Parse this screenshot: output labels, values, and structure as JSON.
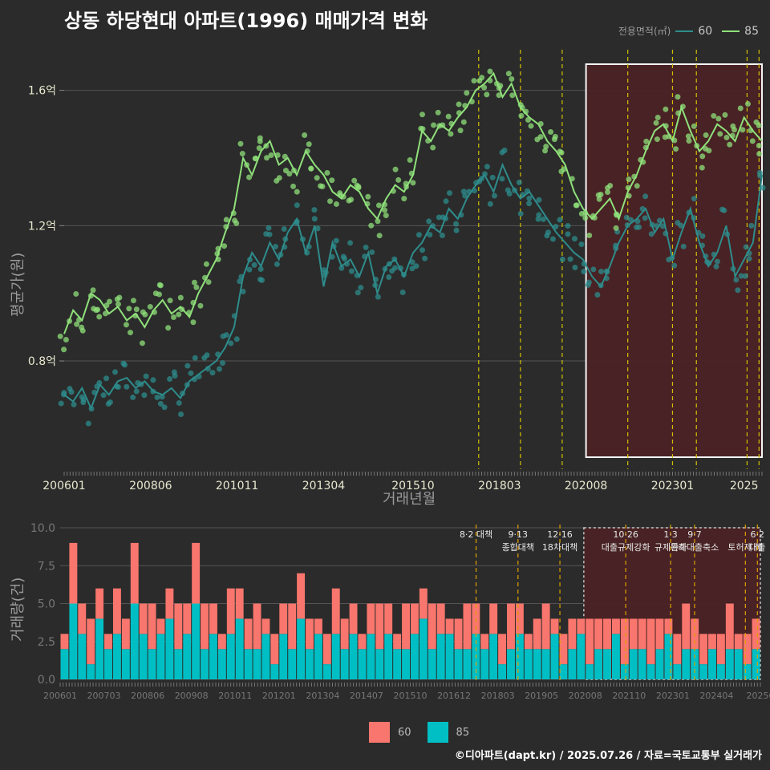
{
  "title": "상동 하당현대 아파트(1996) 매매가격 변화",
  "source": "©디아파트(dapt.kr) / 2025.07.26 / 자료=국토교통부 실거래가",
  "colors": {
    "background": "#2b2b2b",
    "s60_line": "#2e8c8c",
    "s85_line": "#8fe07a",
    "bar60": "#f8766d",
    "bar85": "#00bfc4",
    "vline": "#d4c000",
    "vline2": "#e0a000",
    "highlight_fill": "#4a2224",
    "highlight_border": "#ffffff",
    "grid": "#555555"
  },
  "legend_top": {
    "title": "전용면적(㎡)",
    "items": [
      {
        "label": "60",
        "color": "#2e8c8c"
      },
      {
        "label": "85",
        "color": "#8fe07a"
      }
    ]
  },
  "legend_bottom": {
    "items": [
      {
        "label": "60",
        "color": "#f8766d"
      },
      {
        "label": "85",
        "color": "#00bfc4"
      }
    ]
  },
  "chart_data": [
    {
      "type": "line",
      "title": "상동 하당현대 아파트(1996) 매매가격 변화",
      "xlabel": "거래년월",
      "ylabel": "평균가(원)",
      "x_tick_labels": [
        "200601",
        "200806",
        "201011",
        "201304",
        "201510",
        "201803",
        "202008",
        "202301",
        "2025"
      ],
      "x_tick_values": [
        2006.0,
        2008.417,
        2010.833,
        2013.25,
        2015.75,
        2018.167,
        2020.583,
        2023.0,
        2025.0
      ],
      "xlim": [
        2006.0,
        2025.5
      ],
      "y_tick_labels": [
        "0.8억",
        "1.2억",
        "1.6억"
      ],
      "y_tick_values": [
        0.8,
        1.2,
        1.6
      ],
      "ylim": [
        0.48,
        1.72
      ],
      "y_unit": "억",
      "grid": true,
      "legend_position": "top-right",
      "series": [
        {
          "name": "60",
          "points": [
            [
              2006.0,
              0.7
            ],
            [
              2006.25,
              0.68
            ],
            [
              2006.5,
              0.72
            ],
            [
              2006.75,
              0.66
            ],
            [
              2007.0,
              0.73
            ],
            [
              2007.25,
              0.7
            ],
            [
              2007.5,
              0.74
            ],
            [
              2007.75,
              0.75
            ],
            [
              2008.0,
              0.72
            ],
            [
              2008.25,
              0.74
            ],
            [
              2008.5,
              0.71
            ],
            [
              2008.75,
              0.7
            ],
            [
              2009.0,
              0.72
            ],
            [
              2009.25,
              0.69
            ],
            [
              2009.5,
              0.74
            ],
            [
              2009.75,
              0.76
            ],
            [
              2010.0,
              0.78
            ],
            [
              2010.25,
              0.8
            ],
            [
              2010.5,
              0.84
            ],
            [
              2010.75,
              0.9
            ],
            [
              2011.0,
              1.05
            ],
            [
              2011.25,
              1.12
            ],
            [
              2011.5,
              1.08
            ],
            [
              2011.75,
              1.15
            ],
            [
              2012.0,
              1.1
            ],
            [
              2012.25,
              1.18
            ],
            [
              2012.5,
              1.22
            ],
            [
              2012.75,
              1.12
            ],
            [
              2013.0,
              1.2
            ],
            [
              2013.25,
              1.02
            ],
            [
              2013.5,
              1.15
            ],
            [
              2013.75,
              1.08
            ],
            [
              2014.0,
              1.1
            ],
            [
              2014.25,
              1.05
            ],
            [
              2014.5,
              1.12
            ],
            [
              2014.75,
              1.0
            ],
            [
              2015.0,
              1.08
            ],
            [
              2015.25,
              1.1
            ],
            [
              2015.5,
              1.05
            ],
            [
              2015.75,
              1.12
            ],
            [
              2016.0,
              1.15
            ],
            [
              2016.25,
              1.2
            ],
            [
              2016.5,
              1.18
            ],
            [
              2016.75,
              1.25
            ],
            [
              2017.0,
              1.22
            ],
            [
              2017.25,
              1.28
            ],
            [
              2017.5,
              1.32
            ],
            [
              2017.75,
              1.35
            ],
            [
              2018.0,
              1.3
            ],
            [
              2018.25,
              1.38
            ],
            [
              2018.5,
              1.32
            ],
            [
              2018.75,
              1.28
            ],
            [
              2019.0,
              1.3
            ],
            [
              2019.25,
              1.26
            ],
            [
              2019.5,
              1.22
            ],
            [
              2019.75,
              1.18
            ],
            [
              2020.0,
              1.15
            ],
            [
              2020.25,
              1.12
            ],
            [
              2020.5,
              1.1
            ],
            [
              2020.75,
              1.05
            ],
            [
              2021.0,
              1.02
            ],
            [
              2021.25,
              1.08
            ],
            [
              2021.5,
              1.15
            ],
            [
              2021.75,
              1.2
            ],
            [
              2022.0,
              1.22
            ],
            [
              2022.25,
              1.25
            ],
            [
              2022.5,
              1.18
            ],
            [
              2022.75,
              1.22
            ],
            [
              2023.0,
              1.1
            ],
            [
              2023.25,
              1.18
            ],
            [
              2023.5,
              1.25
            ],
            [
              2023.75,
              1.15
            ],
            [
              2024.0,
              1.08
            ],
            [
              2024.25,
              1.12
            ],
            [
              2024.5,
              1.2
            ],
            [
              2024.75,
              1.05
            ],
            [
              2025.0,
              1.1
            ],
            [
              2025.25,
              1.15
            ],
            [
              2025.5,
              1.35
            ]
          ]
        },
        {
          "name": "85",
          "points": [
            [
              2006.0,
              0.88
            ],
            [
              2006.25,
              0.95
            ],
            [
              2006.5,
              0.92
            ],
            [
              2006.75,
              1.0
            ],
            [
              2007.0,
              0.98
            ],
            [
              2007.25,
              0.94
            ],
            [
              2007.5,
              0.96
            ],
            [
              2007.75,
              0.92
            ],
            [
              2008.0,
              0.94
            ],
            [
              2008.25,
              0.9
            ],
            [
              2008.5,
              0.95
            ],
            [
              2008.75,
              0.98
            ],
            [
              2009.0,
              0.94
            ],
            [
              2009.25,
              0.96
            ],
            [
              2009.5,
              0.93
            ],
            [
              2009.75,
              1.0
            ],
            [
              2010.0,
              1.05
            ],
            [
              2010.25,
              1.1
            ],
            [
              2010.5,
              1.18
            ],
            [
              2010.75,
              1.25
            ],
            [
              2011.0,
              1.4
            ],
            [
              2011.25,
              1.35
            ],
            [
              2011.5,
              1.42
            ],
            [
              2011.75,
              1.45
            ],
            [
              2012.0,
              1.38
            ],
            [
              2012.25,
              1.4
            ],
            [
              2012.5,
              1.35
            ],
            [
              2012.75,
              1.42
            ],
            [
              2013.0,
              1.38
            ],
            [
              2013.25,
              1.35
            ],
            [
              2013.5,
              1.3
            ],
            [
              2013.75,
              1.28
            ],
            [
              2014.0,
              1.32
            ],
            [
              2014.25,
              1.3
            ],
            [
              2014.5,
              1.25
            ],
            [
              2014.75,
              1.22
            ],
            [
              2015.0,
              1.28
            ],
            [
              2015.25,
              1.32
            ],
            [
              2015.5,
              1.3
            ],
            [
              2015.75,
              1.35
            ],
            [
              2016.0,
              1.48
            ],
            [
              2016.25,
              1.45
            ],
            [
              2016.5,
              1.5
            ],
            [
              2016.75,
              1.48
            ],
            [
              2017.0,
              1.52
            ],
            [
              2017.25,
              1.55
            ],
            [
              2017.5,
              1.6
            ],
            [
              2017.75,
              1.62
            ],
            [
              2018.0,
              1.65
            ],
            [
              2018.25,
              1.58
            ],
            [
              2018.5,
              1.62
            ],
            [
              2018.75,
              1.55
            ],
            [
              2019.0,
              1.52
            ],
            [
              2019.25,
              1.5
            ],
            [
              2019.5,
              1.45
            ],
            [
              2019.75,
              1.42
            ],
            [
              2020.0,
              1.38
            ],
            [
              2020.25,
              1.3
            ],
            [
              2020.5,
              1.25
            ],
            [
              2020.75,
              1.22
            ],
            [
              2021.0,
              1.25
            ],
            [
              2021.25,
              1.28
            ],
            [
              2021.5,
              1.22
            ],
            [
              2021.75,
              1.3
            ],
            [
              2022.0,
              1.35
            ],
            [
              2022.25,
              1.42
            ],
            [
              2022.5,
              1.48
            ],
            [
              2022.75,
              1.5
            ],
            [
              2023.0,
              1.45
            ],
            [
              2023.25,
              1.55
            ],
            [
              2023.5,
              1.48
            ],
            [
              2023.75,
              1.42
            ],
            [
              2024.0,
              1.45
            ],
            [
              2024.25,
              1.5
            ],
            [
              2024.5,
              1.48
            ],
            [
              2024.75,
              1.45
            ],
            [
              2025.0,
              1.52
            ],
            [
              2025.25,
              1.48
            ],
            [
              2025.5,
              1.45
            ]
          ]
        }
      ],
      "policy_lines": [
        2017.583,
        2018.75,
        2019.917,
        2021.75,
        2023.0,
        2023.667,
        2025.083,
        2025.417
      ],
      "highlight_range": [
        2020.583,
        2025.5
      ]
    },
    {
      "type": "bar",
      "stacked": true,
      "ylabel": "거래량(건)",
      "x_tick_labels": [
        "200601",
        "200703",
        "200806",
        "200908",
        "201011",
        "201201",
        "201304",
        "201407",
        "201510",
        "201612",
        "201803",
        "201905",
        "202008",
        "202110",
        "202301",
        "202404",
        "20250"
      ],
      "ylim": [
        0,
        10
      ],
      "y_tick_labels": [
        "0.0",
        "2.5",
        "5.0",
        "7.5",
        "10.0"
      ],
      "y_tick_values": [
        0,
        2.5,
        5.0,
        7.5,
        10.0
      ],
      "annotations": [
        {
          "x": 2017.583,
          "lines": [
            "8·2 대책"
          ]
        },
        {
          "x": 2018.75,
          "lines": [
            "9·13",
            "종합대책"
          ]
        },
        {
          "x": 2019.917,
          "lines": [
            "12·16",
            "18차대책"
          ]
        },
        {
          "x": 2021.75,
          "lines": [
            "10·26",
            "대출규제강화"
          ]
        },
        {
          "x": 2023.0,
          "lines": [
            "1·3",
            "규제완화"
          ]
        },
        {
          "x": 2023.667,
          "lines": [
            "9·7",
            "특례대출축소"
          ]
        },
        {
          "x": 2025.083,
          "lines": [
            "",
            "토허제 해"
          ]
        },
        {
          "x": 2025.417,
          "lines": [
            "6·2",
            "대출"
          ]
        }
      ],
      "series": [
        {
          "name": "60",
          "values": [
            1,
            4,
            2,
            3,
            2,
            1,
            3,
            2,
            4,
            2,
            3,
            1,
            2,
            3,
            2,
            4,
            3,
            2,
            1,
            3,
            2,
            2,
            3,
            1,
            2,
            2,
            3,
            3,
            2,
            1,
            2,
            3,
            2,
            2,
            1,
            2,
            3,
            2,
            1,
            3,
            2,
            2,
            3,
            2,
            1,
            2,
            3,
            2,
            1,
            2,
            2,
            3,
            2,
            1,
            2,
            3,
            1,
            2,
            2,
            1,
            3,
            2,
            2,
            1,
            3,
            2,
            2,
            3,
            2,
            1,
            2,
            3,
            2,
            2,
            1,
            2,
            3,
            1,
            2,
            2
          ]
        },
        {
          "name": "85",
          "values": [
            2,
            5,
            3,
            1,
            4,
            2,
            3,
            2,
            5,
            3,
            2,
            3,
            4,
            2,
            3,
            5,
            2,
            3,
            2,
            3,
            4,
            2,
            2,
            3,
            1,
            3,
            2,
            4,
            2,
            3,
            1,
            3,
            2,
            3,
            2,
            3,
            2,
            3,
            2,
            2,
            3,
            4,
            2,
            3,
            3,
            2,
            2,
            3,
            2,
            3,
            1,
            2,
            3,
            2,
            2,
            2,
            3,
            1,
            2,
            3,
            1,
            2,
            2,
            3,
            1,
            2,
            2,
            1,
            2,
            3,
            1,
            2,
            2,
            1,
            2,
            1,
            2,
            2,
            1,
            2
          ]
        }
      ]
    }
  ]
}
